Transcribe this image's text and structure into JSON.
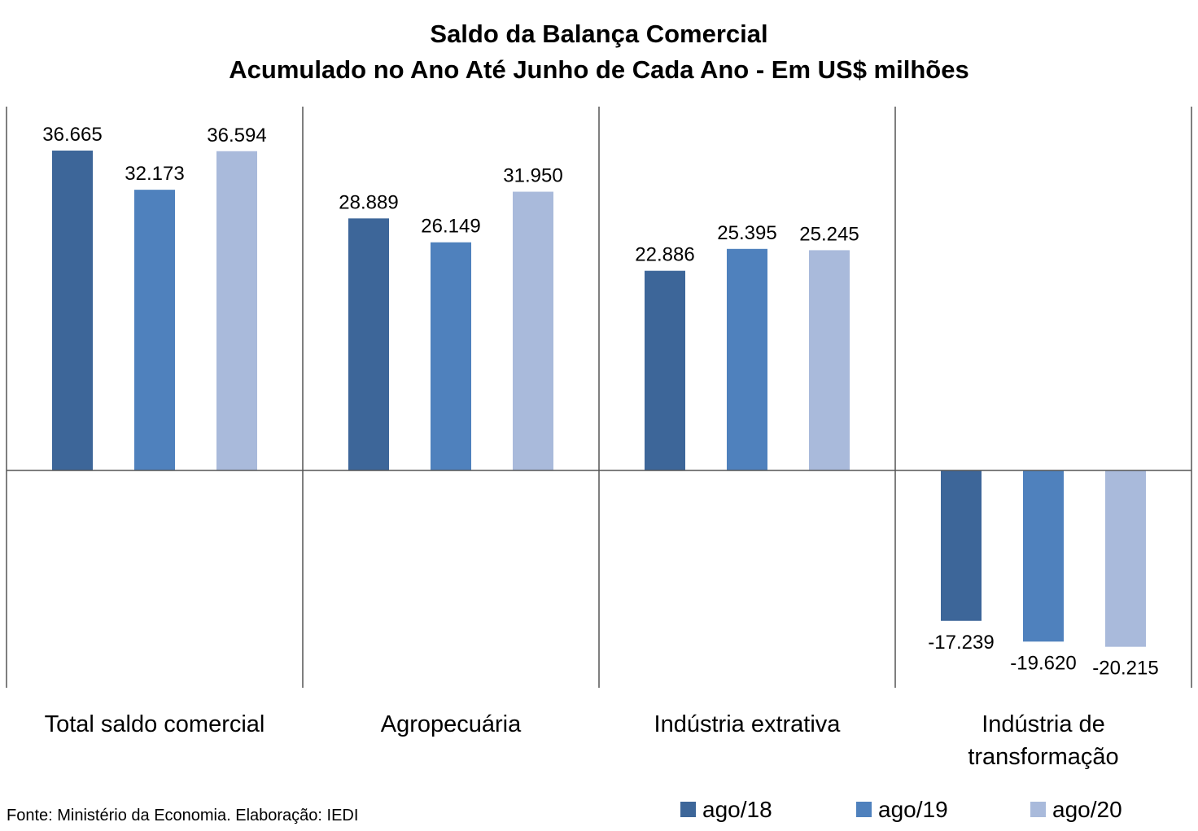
{
  "chart_data": {
    "type": "bar",
    "title": "Saldo da Balança Comercial",
    "subtitle": "Acumulado no Ano Até Junho de Cada Ano - Em US$ milhões",
    "categories": [
      "Total saldo comercial",
      "Agropecuária",
      "Indústria extrativa",
      [
        "Indústria de",
        "transformação"
      ]
    ],
    "series": [
      {
        "name": "ago/18",
        "color": "#3d6699",
        "values": [
          36665,
          28889,
          22886,
          -17239
        ],
        "labels": [
          "36.665",
          "28.889",
          "22.886",
          "-17.239"
        ]
      },
      {
        "name": "ago/19",
        "color": "#4f81bd",
        "values": [
          32173,
          26149,
          25395,
          -19620
        ],
        "labels": [
          "32.173",
          "26.149",
          "25.395",
          "-19.620"
        ]
      },
      {
        "name": "ago/20",
        "color": "#a9badb",
        "values": [
          36594,
          31950,
          25245,
          -20215
        ],
        "labels": [
          "36.594",
          "31.950",
          "25.245",
          "-20.215"
        ]
      }
    ],
    "ylim": [
      -25000,
      41000
    ],
    "grid": false,
    "legend": "bottom-right"
  },
  "source": "Fonte: Ministério da Economia. Elaboração: IEDI"
}
